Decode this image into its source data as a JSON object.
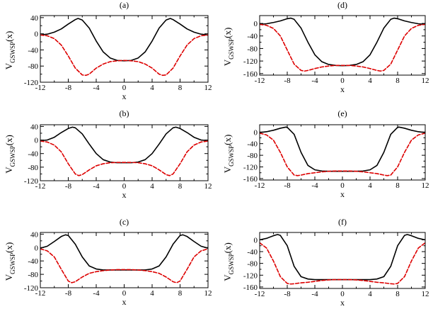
{
  "figure": {
    "ylabel_main": "V",
    "ylabel_sub": "GSWSP",
    "ylabel_arg": "(x)",
    "xlabel": "x"
  },
  "chart_data": [
    {
      "type": "line",
      "title": "(a)",
      "xlabel": "x",
      "ylabel": "V_GSWSP(x)",
      "xlim": [
        -12,
        12
      ],
      "ylim": [
        -120,
        45
      ],
      "xticks": [
        "-12",
        "-8",
        "-4",
        "0",
        "4",
        "8",
        "12"
      ],
      "yticks": [
        "40",
        "0",
        "-40",
        "-80",
        "-120"
      ],
      "series": [
        {
          "name": "black solid",
          "color": "#000000",
          "style": "solid",
          "x": [
            -12,
            -11,
            -10,
            -9,
            -8,
            -7,
            -6.6,
            -6,
            -5,
            -4,
            -3,
            -2,
            -1,
            0,
            1,
            2,
            3,
            4,
            5,
            6,
            6.6,
            7,
            8,
            9,
            10,
            11,
            12
          ],
          "y": [
            -3,
            -1,
            4,
            12,
            24,
            35,
            38,
            34,
            14,
            -18,
            -45,
            -60,
            -66,
            -67,
            -66,
            -60,
            -45,
            -18,
            14,
            34,
            38,
            35,
            24,
            12,
            4,
            -1,
            -3
          ]
        },
        {
          "name": "red dashed",
          "color": "#dd0000",
          "style": "dashed",
          "x": [
            -12,
            -11,
            -10,
            -9,
            -8,
            -7,
            -6,
            -5.5,
            -5,
            -4,
            -3,
            -2,
            -1,
            0,
            1,
            2,
            3,
            4,
            5,
            5.5,
            6,
            7,
            8,
            9,
            10,
            11,
            12
          ],
          "y": [
            -3,
            -5,
            -12,
            -28,
            -55,
            -85,
            -102,
            -103,
            -100,
            -85,
            -75,
            -69,
            -67,
            -66,
            -67,
            -69,
            -75,
            -85,
            -100,
            -103,
            -102,
            -85,
            -55,
            -28,
            -12,
            -5,
            -3
          ]
        }
      ]
    },
    {
      "type": "line",
      "title": "(b)",
      "xlabel": "x",
      "ylabel": "V_GSWSP(x)",
      "xlim": [
        -12,
        12
      ],
      "ylim": [
        -120,
        45
      ],
      "xticks": [
        "-12",
        "-8",
        "-4",
        "0",
        "4",
        "8",
        "12"
      ],
      "yticks": [
        "40",
        "0",
        "-40",
        "-80",
        "-120"
      ],
      "series": [
        {
          "name": "black solid",
          "color": "#000000",
          "style": "solid",
          "x": [
            -12,
            -11,
            -10,
            -9,
            -8,
            -7.4,
            -7,
            -6,
            -5,
            -4,
            -3,
            -2,
            -1,
            0,
            1,
            2,
            3,
            4,
            5,
            6,
            7,
            7.4,
            8,
            9,
            10,
            11,
            12
          ],
          "y": [
            -2,
            0,
            8,
            22,
            34,
            38,
            36,
            18,
            -12,
            -40,
            -58,
            -65,
            -67,
            -67,
            -67,
            -65,
            -58,
            -40,
            -12,
            18,
            36,
            38,
            34,
            22,
            8,
            0,
            -2
          ]
        },
        {
          "name": "red dashed",
          "color": "#dd0000",
          "style": "dashed",
          "x": [
            -12,
            -11,
            -10,
            -9,
            -8,
            -7,
            -6.5,
            -6,
            -5,
            -4,
            -3,
            -2,
            -1,
            0,
            1,
            2,
            3,
            4,
            5,
            6,
            6.5,
            7,
            8,
            9,
            10,
            11,
            12
          ],
          "y": [
            -3,
            -6,
            -15,
            -35,
            -70,
            -100,
            -105,
            -102,
            -88,
            -76,
            -70,
            -67,
            -66,
            -66,
            -66,
            -67,
            -70,
            -76,
            -88,
            -102,
            -105,
            -100,
            -70,
            -35,
            -15,
            -6,
            -3
          ]
        }
      ]
    },
    {
      "type": "line",
      "title": "(c)",
      "xlabel": "x",
      "ylabel": "V_GSWSP(x)",
      "xlim": [
        -12,
        12
      ],
      "ylim": [
        -120,
        45
      ],
      "xticks": [
        "-12",
        "-8",
        "-4",
        "0",
        "4",
        "8",
        "12"
      ],
      "yticks": [
        "40",
        "0",
        "-40",
        "-80",
        "-120"
      ],
      "series": [
        {
          "name": "black solid",
          "color": "#000000",
          "style": "solid",
          "x": [
            -12,
            -11,
            -10,
            -9,
            -8.4,
            -8,
            -7,
            -6,
            -5,
            -4,
            -3,
            -2,
            -1,
            0,
            1,
            2,
            3,
            4,
            5,
            6,
            7,
            8,
            8.4,
            9,
            10,
            11,
            12
          ],
          "y": [
            -2,
            4,
            18,
            33,
            38,
            36,
            10,
            -28,
            -55,
            -64,
            -67,
            -67,
            -67,
            -67,
            -67,
            -67,
            -67,
            -64,
            -55,
            -28,
            10,
            36,
            38,
            33,
            18,
            4,
            -2
          ]
        },
        {
          "name": "red dashed",
          "color": "#dd0000",
          "style": "dashed",
          "x": [
            -12,
            -11,
            -10,
            -9,
            -8,
            -7.5,
            -7,
            -6,
            -5,
            -4,
            -3,
            -2,
            -1,
            0,
            1,
            2,
            3,
            4,
            5,
            6,
            7,
            7.5,
            8,
            9,
            10,
            11,
            12
          ],
          "y": [
            -4,
            -10,
            -28,
            -65,
            -100,
            -105,
            -102,
            -88,
            -77,
            -72,
            -69,
            -67,
            -66,
            -66,
            -66,
            -67,
            -69,
            -72,
            -77,
            -88,
            -102,
            -105,
            -100,
            -65,
            -28,
            -10,
            -4
          ]
        }
      ]
    },
    {
      "type": "line",
      "title": "(d)",
      "xlabel": "x",
      "ylabel": "V_GSWSP(x)",
      "xlim": [
        -12,
        12
      ],
      "ylim": [
        -165,
        25
      ],
      "xticks": [
        "-12",
        "-8",
        "-4",
        "0",
        "4",
        "8",
        "12"
      ],
      "yticks": [
        "0",
        "-40",
        "-80",
        "-120",
        "-160"
      ],
      "series": [
        {
          "name": "black solid",
          "color": "#000000",
          "style": "solid",
          "x": [
            -12,
            -11,
            -10,
            -9,
            -8,
            -7.5,
            -7,
            -6,
            -5,
            -4,
            -3,
            -2,
            -1,
            0,
            1,
            2,
            3,
            4,
            5,
            6,
            7,
            7.5,
            8,
            9,
            10,
            11,
            12
          ],
          "y": [
            -3,
            -1,
            3,
            8,
            15,
            17,
            13,
            -15,
            -60,
            -100,
            -122,
            -131,
            -134,
            -135,
            -134,
            -131,
            -122,
            -100,
            -60,
            -15,
            13,
            17,
            15,
            8,
            3,
            -1,
            -3
          ]
        },
        {
          "name": "red dashed",
          "color": "#dd0000",
          "style": "dashed",
          "x": [
            -12,
            -11,
            -10,
            -9,
            -8,
            -7,
            -6,
            -5.5,
            -5,
            -4,
            -3,
            -2,
            -1,
            0,
            1,
            2,
            3,
            4,
            5,
            5.5,
            6,
            7,
            8,
            9,
            10,
            11,
            12
          ],
          "y": [
            -3,
            -6,
            -16,
            -40,
            -85,
            -130,
            -150,
            -152,
            -150,
            -144,
            -139,
            -136,
            -134,
            -134,
            -134,
            -136,
            -139,
            -144,
            -150,
            -152,
            -150,
            -130,
            -85,
            -40,
            -16,
            -6,
            -3
          ]
        }
      ]
    },
    {
      "type": "line",
      "title": "(e)",
      "xlabel": "x",
      "ylabel": "V_GSWSP(x)",
      "xlim": [
        -12,
        12
      ],
      "ylim": [
        -165,
        25
      ],
      "xticks": [
        "-12",
        "-8",
        "-4",
        "0",
        "4",
        "8",
        "12"
      ],
      "yticks": [
        "0",
        "-40",
        "-80",
        "-120",
        "-160"
      ],
      "series": [
        {
          "name": "black solid",
          "color": "#000000",
          "style": "solid",
          "x": [
            -12,
            -11,
            -10,
            -9,
            -8.2,
            -8,
            -7,
            -6,
            -5,
            -4,
            -3,
            -2,
            -1,
            0,
            1,
            2,
            3,
            4,
            5,
            6,
            7,
            8,
            8.2,
            9,
            10,
            11,
            12
          ],
          "y": [
            -2,
            1,
            6,
            13,
            17,
            16,
            -8,
            -70,
            -115,
            -130,
            -134,
            -135,
            -135,
            -135,
            -135,
            -135,
            -134,
            -130,
            -115,
            -70,
            -8,
            16,
            17,
            13,
            6,
            1,
            -2
          ]
        },
        {
          "name": "red dashed",
          "color": "#dd0000",
          "style": "dashed",
          "x": [
            -12,
            -11,
            -10,
            -9,
            -8,
            -7,
            -6.5,
            -6,
            -5,
            -4,
            -3,
            -2,
            -1,
            0,
            1,
            2,
            3,
            4,
            5,
            6,
            6.5,
            7,
            8,
            9,
            10,
            11,
            12
          ],
          "y": [
            -4,
            -10,
            -28,
            -70,
            -120,
            -148,
            -150,
            -148,
            -143,
            -140,
            -137,
            -135,
            -134,
            -134,
            -134,
            -135,
            -137,
            -140,
            -143,
            -148,
            -150,
            -148,
            -120,
            -70,
            -28,
            -10,
            -4
          ]
        }
      ]
    },
    {
      "type": "line",
      "title": "(f)",
      "xlabel": "x",
      "ylabel": "V_GSWSP(x)",
      "xlim": [
        -12,
        12
      ],
      "ylim": [
        -165,
        25
      ],
      "xticks": [
        "-12",
        "-8",
        "-4",
        "0",
        "4",
        "8",
        "12"
      ],
      "yticks": [
        "0",
        "-40",
        "-80",
        "-120",
        "-160"
      ],
      "series": [
        {
          "name": "black solid",
          "color": "#000000",
          "style": "solid",
          "x": [
            -12,
            -11,
            -10,
            -9.4,
            -9,
            -8,
            -7,
            -6,
            -5,
            -4,
            -3,
            -2,
            -1,
            0,
            1,
            2,
            3,
            4,
            5,
            6,
            7,
            8,
            9,
            9.4,
            10,
            11,
            12
          ],
          "y": [
            0,
            5,
            14,
            18,
            15,
            -20,
            -90,
            -125,
            -133,
            -135,
            -135,
            -135,
            -135,
            -135,
            -135,
            -135,
            -135,
            -135,
            -133,
            -125,
            -90,
            -20,
            15,
            18,
            14,
            5,
            0
          ]
        },
        {
          "name": "red dashed",
          "color": "#dd0000",
          "style": "dashed",
          "x": [
            -12,
            -11,
            -10,
            -9,
            -8,
            -7.5,
            -7,
            -6,
            -5,
            -4,
            -3,
            -2,
            -1,
            0,
            1,
            2,
            3,
            4,
            5,
            6,
            7,
            7.5,
            8,
            9,
            10,
            11,
            12
          ],
          "y": [
            -10,
            -28,
            -72,
            -125,
            -148,
            -150,
            -149,
            -146,
            -144,
            -141,
            -138,
            -136,
            -135,
            -135,
            -135,
            -136,
            -138,
            -141,
            -144,
            -146,
            -149,
            -150,
            -148,
            -125,
            -72,
            -28,
            -10
          ]
        }
      ]
    }
  ]
}
